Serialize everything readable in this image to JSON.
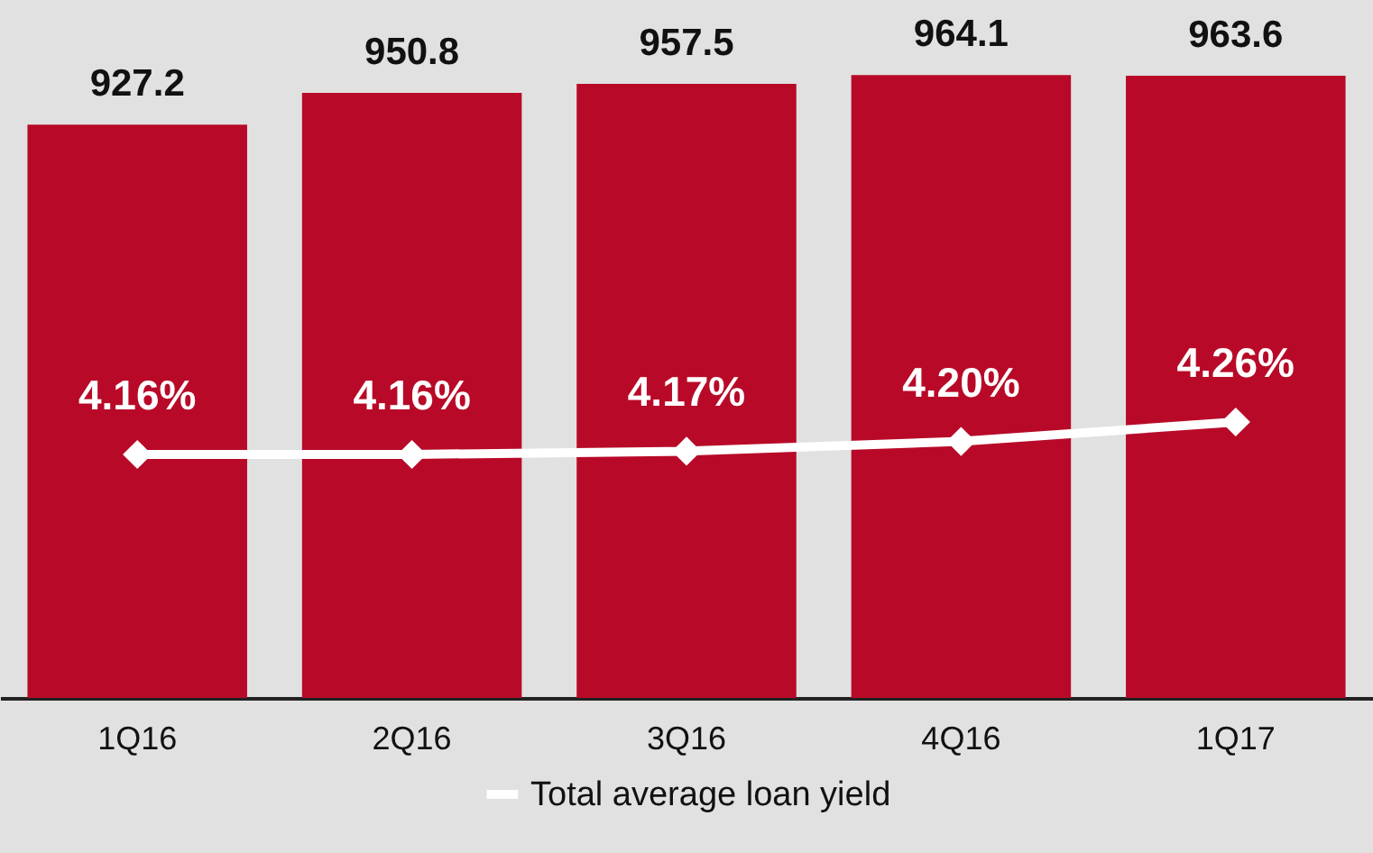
{
  "chart_data": {
    "type": "bar",
    "categories": [
      "1Q16",
      "2Q16",
      "3Q16",
      "4Q16",
      "1Q17"
    ],
    "series": [
      {
        "color": "#b80a28",
        "values": [
          927.2,
          950.8,
          957.5,
          964.1,
          963.6
        ],
        "value_labels": [
          "927.2",
          "950.8",
          "957.5",
          "964.1",
          "963.6"
        ]
      },
      {
        "type": "line",
        "name": "Total average loan yield",
        "axis": "y2",
        "color": "#ffffff",
        "marker": "diamond",
        "values": [
          4.16,
          4.16,
          4.17,
          4.2,
          4.26
        ],
        "value_labels": [
          "4.16%",
          "4.16%",
          "4.17%",
          "4.20%",
          "4.26%"
        ]
      }
    ],
    "ylim": [
      500,
      1020
    ],
    "tick_labels": "x",
    "legend": "bottom"
  }
}
